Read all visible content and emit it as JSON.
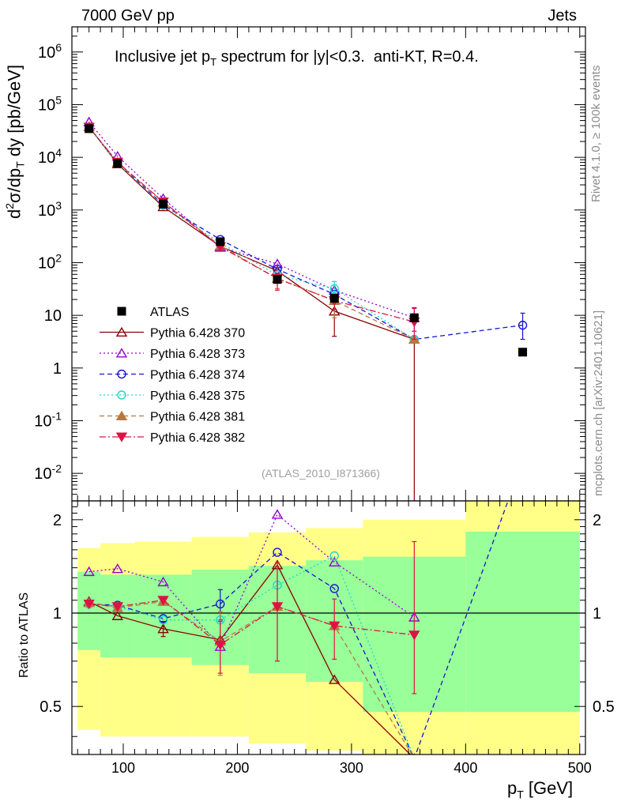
{
  "header": {
    "energy_label": "7000 GeV pp",
    "category_label": "Jets",
    "rivet_label": "Rivet 4.1.0, ≥ 100k events",
    "mcplots_label": "mcplots.cern.ch [arXiv:2401.10621]",
    "analysis_label": "(ATLAS_2010_I871366)"
  },
  "colors": {
    "ratio_band_outer": "#ffff88",
    "ratio_band_inner": "#99ff99",
    "data_marker": "#000000"
  },
  "chart_data": [
    {
      "type": "line",
      "panel": "main",
      "title": "Inclusive jet pT spectrum for |y|<0.3.  anti-KT, R=0.4.",
      "xlabel": "pT [GeV]",
      "ylabel": "d²σ/dpT dy [pb/GeV]",
      "xlim": [
        55,
        505
      ],
      "ylim": [
        0.003,
        3000000
      ],
      "yscale": "log",
      "y_tick_labels": [
        "10^-2",
        "10^-1",
        "1",
        "10",
        "10^2",
        "10^3",
        "10^4",
        "10^5",
        "10^6"
      ],
      "x": [
        70,
        95,
        135,
        185,
        235,
        285,
        355,
        450
      ],
      "data": {
        "name": "ATLAS",
        "color": "#000000",
        "marker": "square",
        "values": [
          35000,
          7700,
          1300,
          250,
          48,
          21,
          9,
          2
        ]
      },
      "series": [
        {
          "name": "Pythia 6.428 370",
          "color": "#8b0000",
          "line": "solid",
          "marker": "triangle-open",
          "values": [
            38000,
            7500,
            1150,
            205,
            70,
            12,
            3.5,
            null
          ],
          "err_low": [
            null,
            null,
            null,
            null,
            null,
            8,
            3.5,
            null
          ],
          "err_high": [
            null,
            null,
            null,
            null,
            null,
            6,
            0,
            null
          ]
        },
        {
          "name": "Pythia 6.428 373",
          "color": "#9400d3",
          "line": "dotted",
          "marker": "triangle-open",
          "values": [
            47000,
            10500,
            1650,
            195,
            95,
            30,
            9,
            null
          ],
          "err_low": [
            null,
            null,
            null,
            null,
            null,
            null,
            4,
            null
          ],
          "err_high": [
            null,
            null,
            null,
            null,
            null,
            null,
            5,
            null
          ]
        },
        {
          "name": "Pythia 6.428 374",
          "color": "#1515d4",
          "line": "dashed",
          "marker": "circle-open",
          "values": [
            37000,
            8000,
            1250,
            275,
            75,
            25,
            3.5,
            6.5
          ],
          "err_low": [
            null,
            null,
            null,
            null,
            null,
            null,
            null,
            3
          ],
          "err_high": [
            null,
            null,
            null,
            null,
            null,
            null,
            null,
            4.5
          ]
        },
        {
          "name": "Pythia 6.428 375",
          "color": "#20d8c8",
          "line": "dotted",
          "marker": "circle-open",
          "values": [
            37000,
            7700,
            1230,
            235,
            58,
            32,
            3.5,
            null
          ],
          "err_low": [
            null,
            null,
            null,
            null,
            null,
            12,
            null,
            null
          ],
          "err_high": [
            null,
            null,
            null,
            null,
            null,
            12,
            null,
            null
          ]
        },
        {
          "name": "Pythia 6.428 381",
          "color": "#b87840",
          "line": "dashed",
          "marker": "triangle-filled",
          "values": [
            38000,
            8000,
            1400,
            210,
            50,
            19,
            3.5,
            null
          ],
          "err_low": [
            null,
            null,
            null,
            null,
            18,
            10,
            null,
            null
          ],
          "err_high": [
            null,
            null,
            null,
            null,
            12,
            6,
            null,
            null
          ]
        },
        {
          "name": "Pythia 6.428 382",
          "color": "#dc1446",
          "line": "dashdot",
          "marker": "triangle-down-filled",
          "values": [
            37500,
            8100,
            1430,
            200,
            50,
            19,
            7.5,
            null
          ],
          "err_low": [
            null,
            null,
            null,
            null,
            20,
            6,
            4,
            null
          ],
          "err_high": [
            null,
            null,
            null,
            null,
            12,
            6,
            6,
            null
          ]
        }
      ]
    },
    {
      "type": "line",
      "panel": "ratio",
      "ylabel": "Ratio to ATLAS",
      "xlabel": "pT [GeV]",
      "xlim": [
        55,
        505
      ],
      "ylim": [
        0.35,
        2.3
      ],
      "yscale": "log",
      "y_tick_labels": [
        "0.5",
        "1",
        "2"
      ],
      "x_tick_labels": [
        "100",
        "200",
        "300",
        "400",
        "500"
      ],
      "bands": {
        "edges": [
          60,
          80,
          110,
          160,
          210,
          260,
          310,
          400,
          500
        ],
        "outer_low": [
          0.42,
          0.4,
          0.4,
          0.4,
          0.38,
          0.36,
          0.34,
          0.34
        ],
        "outer_high": [
          1.62,
          1.68,
          1.7,
          1.76,
          1.82,
          1.88,
          2.0,
          3.5
        ],
        "inner_low": [
          0.76,
          0.72,
          0.72,
          0.68,
          0.64,
          0.6,
          0.48,
          0.48
        ],
        "inner_high": [
          1.36,
          1.33,
          1.33,
          1.38,
          1.42,
          1.48,
          1.52,
          1.83
        ]
      },
      "x": [
        70,
        95,
        135,
        185,
        235,
        285,
        355,
        450
      ],
      "series": [
        {
          "name": "Pythia 6.428 370",
          "values": [
            1.09,
            0.98,
            0.89,
            0.82,
            1.43,
            0.61,
            0.34,
            null
          ],
          "err_low": [
            null,
            null,
            0.05,
            null,
            null,
            null,
            null,
            null
          ],
          "err_high": [
            null,
            null,
            0.05,
            null,
            null,
            null,
            null,
            null
          ]
        },
        {
          "name": "Pythia 6.428 373",
          "values": [
            1.36,
            1.39,
            1.26,
            0.78,
            2.08,
            1.46,
            0.97,
            null
          ]
        },
        {
          "name": "Pythia 6.428 374",
          "values": [
            1.07,
            1.06,
            0.96,
            1.07,
            1.57,
            1.2,
            0.34,
            3.1
          ],
          "err_low": [
            null,
            null,
            null,
            0.12,
            null,
            null,
            null,
            null
          ],
          "err_high": [
            null,
            null,
            null,
            0.12,
            null,
            null,
            null,
            null
          ]
        },
        {
          "name": "Pythia 6.428 375",
          "values": [
            1.07,
            1.05,
            0.95,
            0.95,
            1.23,
            1.53,
            0.34,
            null
          ]
        },
        {
          "name": "Pythia 6.428 381",
          "values": [
            1.08,
            1.04,
            1.09,
            0.81,
            1.05,
            0.91,
            0.34,
            null
          ],
          "err_low": [
            null,
            null,
            null,
            0.18,
            0.35,
            null,
            null,
            null
          ],
          "err_high": [
            null,
            null,
            null,
            0.2,
            0.4,
            null,
            null,
            null
          ]
        },
        {
          "name": "Pythia 6.428 382",
          "values": [
            1.07,
            1.05,
            1.1,
            0.79,
            1.05,
            0.91,
            0.85,
            null
          ],
          "err_low": [
            null,
            null,
            null,
            0.15,
            0.35,
            0.2,
            0.3,
            null
          ],
          "err_high": [
            null,
            null,
            null,
            0.15,
            0.4,
            0.2,
            0.85,
            null
          ]
        }
      ]
    }
  ]
}
